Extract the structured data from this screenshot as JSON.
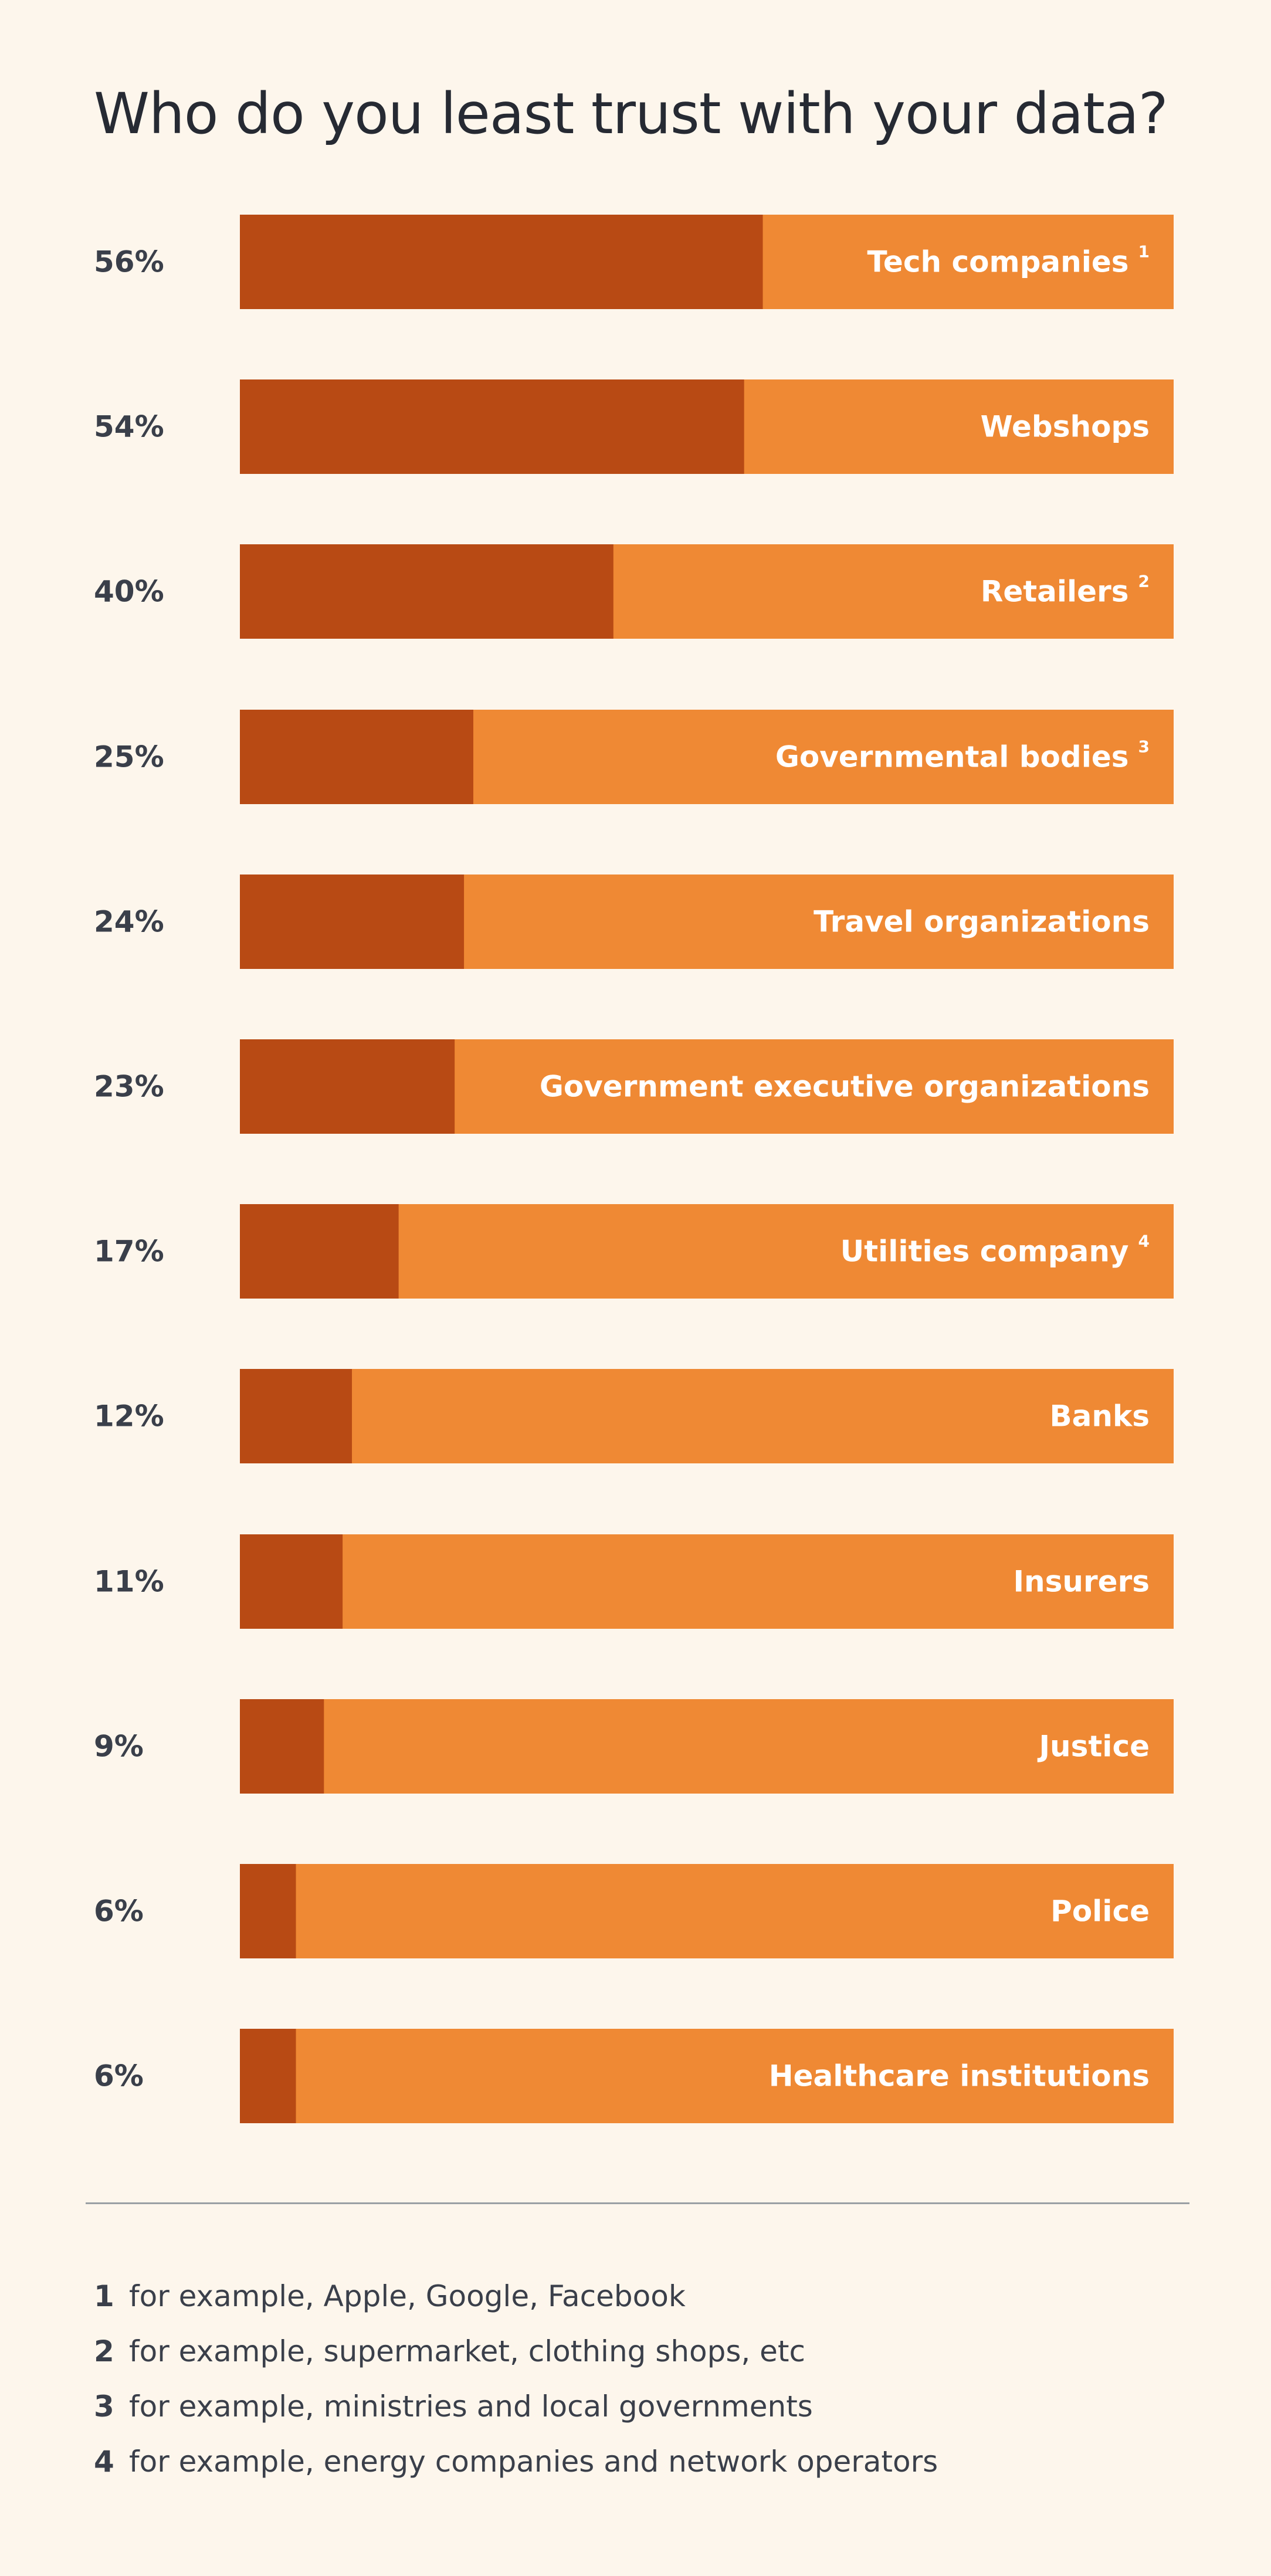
{
  "chart_data": {
    "type": "bar",
    "orientation": "horizontal",
    "stacked_percent": true,
    "title": "Who do you least trust with your data?",
    "categories": [
      "Tech companies",
      "Webshops",
      "Retailers",
      "Governmental bodies",
      "Travel organizations",
      "Government executive organizations",
      "Utilities company",
      "Banks",
      "Insurers",
      "Justice",
      "Police",
      "Healthcare institutions"
    ],
    "footnote_refs": [
      "1",
      "",
      "2",
      "3",
      "",
      "",
      "4",
      "",
      "",
      "",
      "",
      ""
    ],
    "values": [
      56,
      54,
      40,
      25,
      24,
      23,
      17,
      12,
      11,
      9,
      6,
      6
    ],
    "value_labels": [
      "56%",
      "54%",
      "40%",
      "25%",
      "24%",
      "23%",
      "17%",
      "12%",
      "11%",
      "9%",
      "6%",
      "6%"
    ],
    "xlim": [
      0,
      100
    ],
    "colors": {
      "value": "#b84a14",
      "remainder": "#ef8934",
      "background": "#fdf6ec"
    }
  },
  "footnotes": [
    {
      "num": "1",
      "text": "for example, Apple, Google, Facebook"
    },
    {
      "num": "2",
      "text": "for example, supermarket, clothing shops, etc"
    },
    {
      "num": "3",
      "text": "for example, ministries and local governments"
    },
    {
      "num": "4",
      "text": "for example, energy companies and network operators"
    }
  ]
}
